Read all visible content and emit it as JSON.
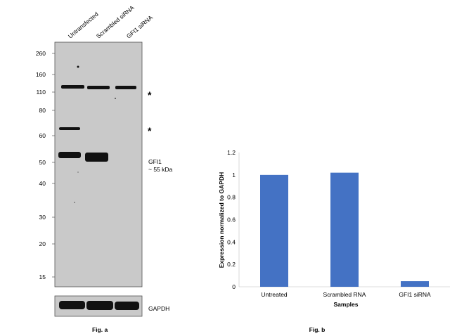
{
  "figure_a": {
    "caption": "Fig. a",
    "lane_labels": [
      "Untransfected",
      "Scrambled siRNA",
      "GFI1 siRNA"
    ],
    "mw_markers": [
      "260",
      "160",
      "110",
      "80",
      "60",
      "50",
      "40",
      "30",
      "20",
      "15"
    ],
    "asterisks": [
      "*",
      "*"
    ],
    "target_label": "GFI1",
    "target_size": "~ 55 kDa",
    "loading_control_label": "GAPDH"
  },
  "figure_b": {
    "caption": "Fig. b"
  },
  "chart_data": {
    "type": "bar",
    "title": "",
    "categories": [
      "Untreated",
      "Scrambled RNA",
      "GFI1 siRNA"
    ],
    "values": [
      1.0,
      1.02,
      0.05
    ],
    "xlabel": "Samples",
    "ylabel": "Expression normalized to GAPDH",
    "ylim": [
      0,
      1.2
    ],
    "yticks": [
      "0",
      "0.2",
      "0.4",
      "0.6",
      "0.8",
      "1",
      "1.2"
    ],
    "bar_color": "#4472c4",
    "grid": false
  },
  "colors": {
    "blot_background": "#c9c9c9",
    "band": "#111111"
  }
}
